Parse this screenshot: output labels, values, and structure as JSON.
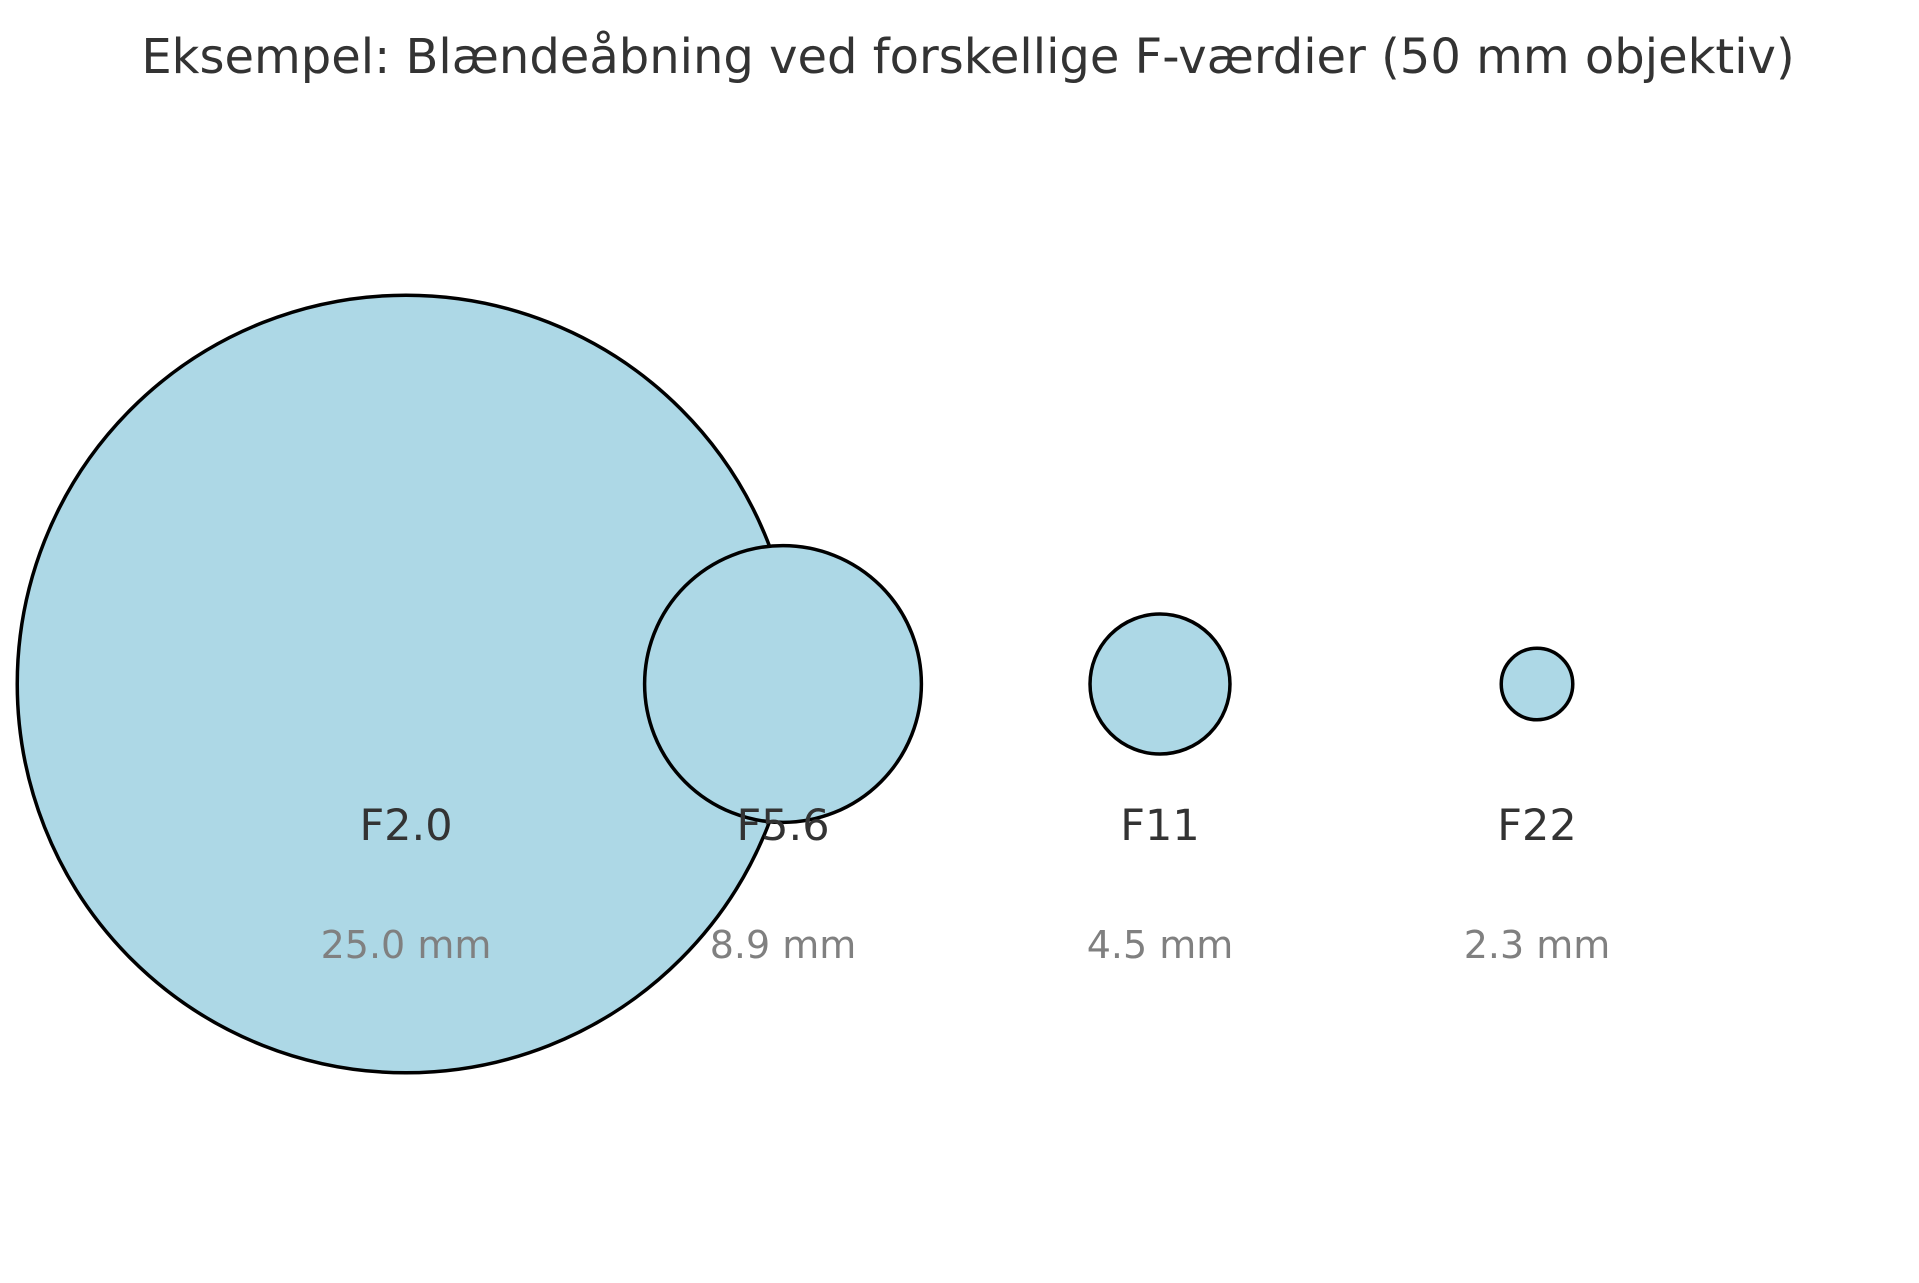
{
  "title": "Eksempel: Blændeåbning ved forskellige F-værdier (50 mm objektiv)",
  "colors": {
    "aperture_fill": "#add8e6",
    "aperture_stroke": "#000000",
    "label_color": "#333333",
    "diameter_color": "#808080",
    "background": "#ffffff"
  },
  "apertures": [
    {
      "f_label": "F2.0",
      "diameter_label": "25.0 mm",
      "diameter_mm": 25.0
    },
    {
      "f_label": "F5.6",
      "diameter_label": "8.9 mm",
      "diameter_mm": 8.9
    },
    {
      "f_label": "F11",
      "diameter_label": "4.5 mm",
      "diameter_mm": 4.5
    },
    {
      "f_label": "F22",
      "diameter_label": "2.3 mm",
      "diameter_mm": 2.3
    }
  ]
}
